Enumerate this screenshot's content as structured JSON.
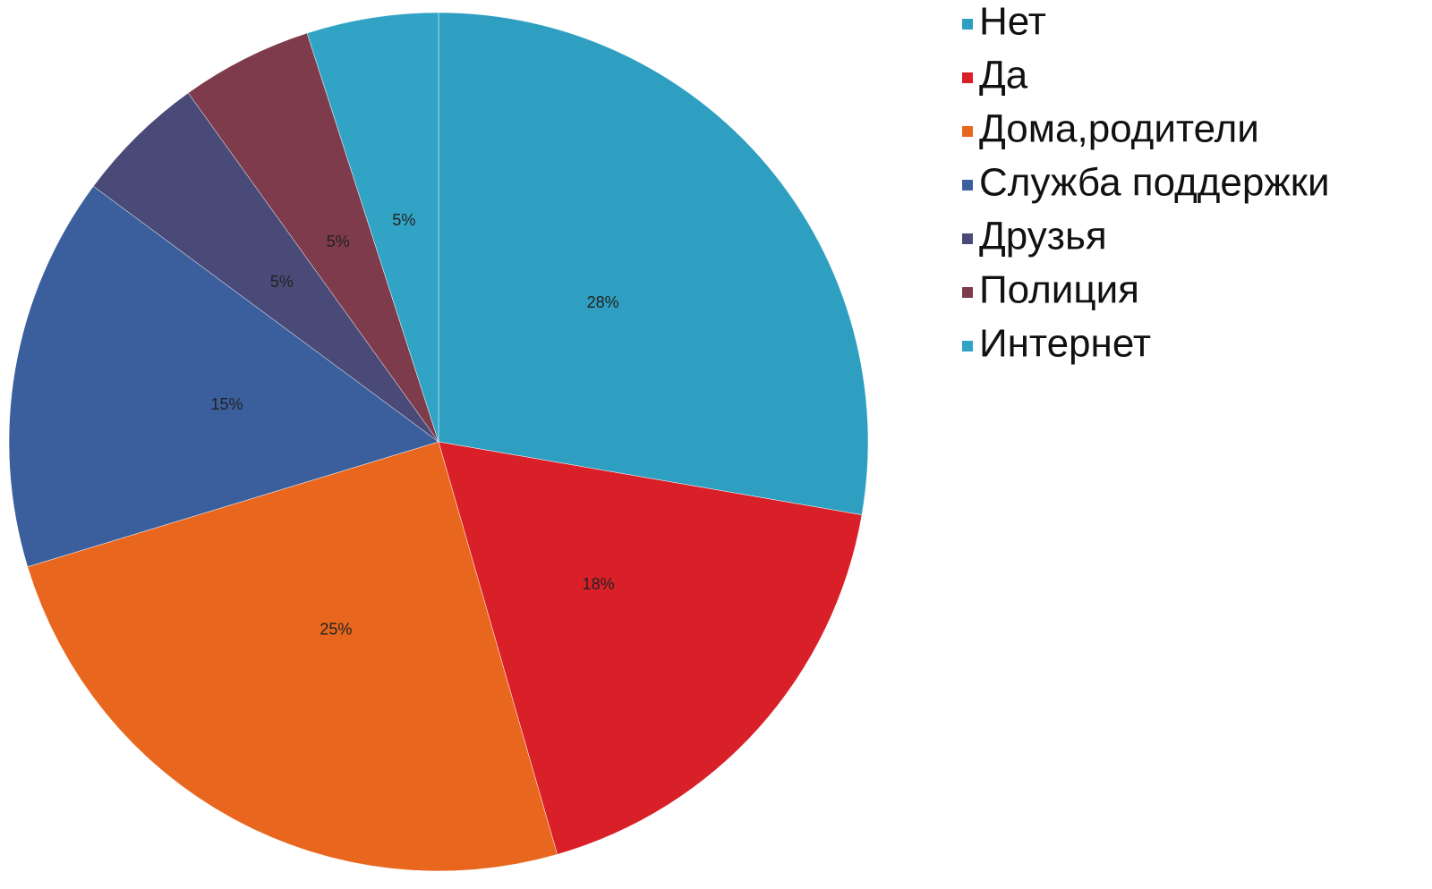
{
  "chart_data": {
    "type": "pie",
    "categories": [
      "Нет",
      "Да",
      "Дома,родители",
      "Служба поддержки",
      "Друзья",
      "Полиция",
      "Интернет"
    ],
    "values": [
      28,
      18,
      25,
      15,
      5,
      5,
      5
    ],
    "value_labels": [
      "28%",
      "18%",
      "25%",
      "15%",
      "5%",
      "5%",
      "5%"
    ],
    "colors": [
      "#2f9fc1",
      "#d91f27",
      "#e8661d",
      "#3b5f9d",
      "#4a4a78",
      "#7d3b4b",
      "#31a3c4"
    ],
    "legend": "right"
  }
}
